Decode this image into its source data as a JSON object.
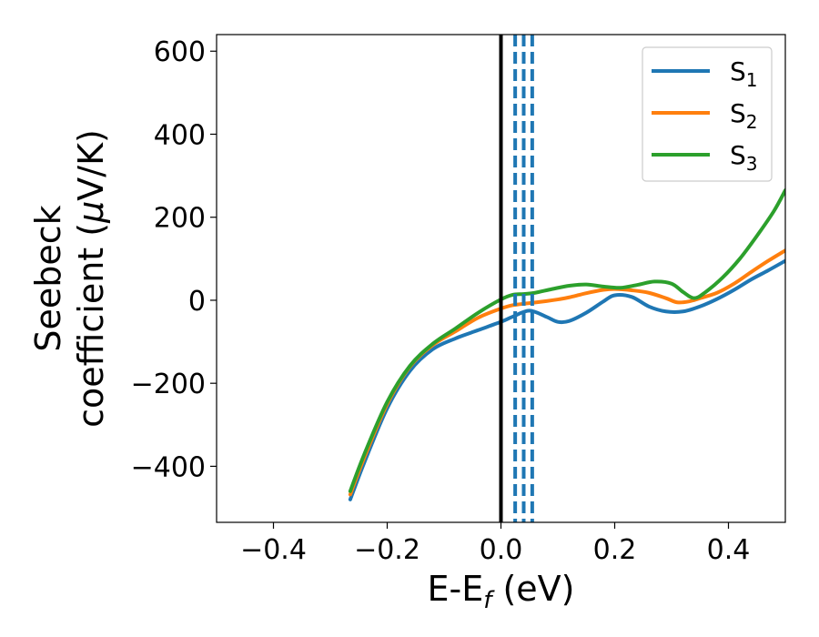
{
  "chart_data": {
    "type": "line",
    "xlabel": {
      "main": "E-E",
      "sub": "f",
      "suffix": " (eV)"
    },
    "ylabel": {
      "line1": "Seebeck",
      "line2": "coefficient  (",
      "mu": "μ",
      "line2_end": "V/K)"
    },
    "xlim": [
      -0.5,
      0.5
    ],
    "ylim": [
      -535,
      640
    ],
    "xticks": [
      -0.4,
      -0.2,
      0.0,
      0.2,
      0.4
    ],
    "xtick_labels": [
      "−0.4",
      "−0.2",
      "0.0",
      "0.2",
      "0.4"
    ],
    "yticks": [
      -400,
      -200,
      0,
      200,
      400,
      600
    ],
    "ytick_labels": [
      "−400",
      "−200",
      "0",
      "200",
      "400",
      "600"
    ],
    "legend_position": "top-right",
    "vlines": [
      {
        "x": 0.0,
        "color": "#000000",
        "style": "solid"
      },
      {
        "x": 0.025,
        "color": "#1f77b4",
        "style": "dashed"
      },
      {
        "x": 0.04,
        "color": "#1f77b4",
        "style": "dashed"
      },
      {
        "x": 0.055,
        "color": "#1f77b4",
        "style": "dashed"
      }
    ],
    "series": [
      {
        "name": "S",
        "sub": "1",
        "color": "#1f77b4",
        "x": [
          -0.265,
          -0.24,
          -0.2,
          -0.16,
          -0.12,
          -0.08,
          -0.04,
          0.0,
          0.02,
          0.05,
          0.08,
          0.1,
          0.12,
          0.15,
          0.18,
          0.2,
          0.23,
          0.26,
          0.29,
          0.32,
          0.35,
          0.38,
          0.41,
          0.44,
          0.47,
          0.5
        ],
        "y": [
          -480,
          -390,
          -260,
          -170,
          -118,
          -92,
          -72,
          -52,
          -40,
          -25,
          -40,
          -52,
          -50,
          -30,
          -3,
          12,
          8,
          -15,
          -27,
          -27,
          -15,
          3,
          25,
          50,
          72,
          95
        ]
      },
      {
        "name": "S",
        "sub": "2",
        "color": "#ff7f0e",
        "x": [
          -0.265,
          -0.24,
          -0.2,
          -0.16,
          -0.12,
          -0.08,
          -0.04,
          0.0,
          0.02,
          0.05,
          0.08,
          0.1,
          0.12,
          0.15,
          0.18,
          0.2,
          0.23,
          0.26,
          0.29,
          0.31,
          0.33,
          0.35,
          0.38,
          0.41,
          0.44,
          0.47,
          0.5
        ],
        "y": [
          -468,
          -378,
          -250,
          -160,
          -108,
          -75,
          -42,
          -20,
          -12,
          -7,
          -2,
          2,
          7,
          17,
          25,
          27,
          24,
          18,
          5,
          -5,
          -3,
          5,
          18,
          40,
          68,
          95,
          120
        ]
      },
      {
        "name": "S",
        "sub": "3",
        "color": "#2ca02c",
        "x": [
          -0.265,
          -0.24,
          -0.2,
          -0.16,
          -0.12,
          -0.08,
          -0.04,
          0.0,
          0.02,
          0.04,
          0.06,
          0.09,
          0.12,
          0.15,
          0.18,
          0.21,
          0.24,
          0.27,
          0.3,
          0.32,
          0.34,
          0.36,
          0.39,
          0.42,
          0.45,
          0.48,
          0.5
        ],
        "y": [
          -460,
          -370,
          -245,
          -158,
          -105,
          -68,
          -30,
          2,
          13,
          15,
          18,
          27,
          35,
          38,
          33,
          30,
          37,
          45,
          40,
          20,
          5,
          20,
          55,
          100,
          155,
          215,
          265
        ]
      }
    ]
  }
}
